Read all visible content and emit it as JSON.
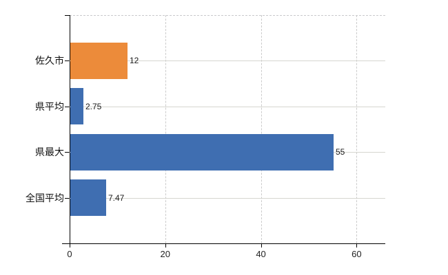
{
  "chart_data": {
    "type": "bar",
    "orientation": "horizontal",
    "title": "",
    "xlabel": "",
    "ylabel": "",
    "categories": [
      "佐久市",
      "県平均",
      "県最大",
      "全国平均"
    ],
    "values": [
      12,
      2.75,
      55,
      7.47
    ],
    "value_labels": [
      "12",
      "2.75",
      "55",
      "7.47"
    ],
    "bar_colors": [
      "#ec8b3a",
      "#3f6eb1",
      "#3f6eb1",
      "#3f6eb1"
    ],
    "x_ticks": [
      0,
      20,
      40,
      60
    ],
    "x_tick_labels": [
      "0",
      "20",
      "40",
      "60"
    ],
    "xlim": [
      0,
      66
    ],
    "legend": "none",
    "grid": {
      "horizontal_lines": "solid, one per category center",
      "vertical_lines": "dashed, at x ticks 20/40/60",
      "plot_top_border": "dashed"
    }
  },
  "colors": {
    "background": "#ffffff",
    "axis": "#000000",
    "grid_solid": "#d5d5cf",
    "grid_dashed": "#cbcbcb",
    "text": "#1a1a1a",
    "accent_orange": "#ec8b3a",
    "accent_blue": "#3f6eb1"
  }
}
